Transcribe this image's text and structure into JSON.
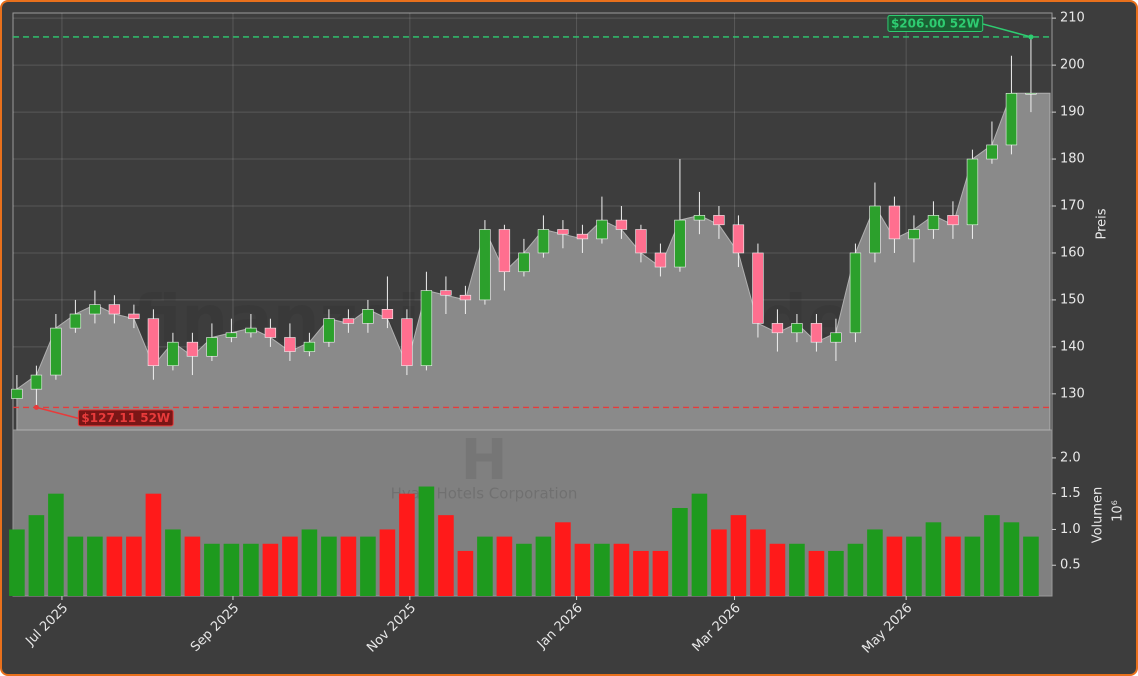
{
  "chart_data": {
    "type": "candlestick",
    "categories": [
      null,
      null,
      null,
      null,
      null,
      null,
      null,
      null,
      null,
      null,
      null,
      null,
      null,
      null,
      null,
      null,
      null,
      null,
      null,
      null,
      null,
      null,
      null,
      null,
      null,
      null,
      null,
      null,
      null,
      null,
      null,
      null,
      null,
      null,
      null,
      null,
      null,
      null,
      null,
      null,
      null,
      null,
      null,
      null,
      null,
      null,
      null,
      null,
      null,
      null,
      null,
      null,
      null
    ],
    "open": [
      129,
      131,
      134,
      144,
      147,
      149,
      147,
      146,
      136,
      141,
      138,
      142,
      143,
      144,
      142,
      139,
      141,
      146,
      145,
      148,
      146,
      136,
      152,
      151,
      150,
      165,
      156,
      160,
      165,
      164,
      163,
      167,
      165,
      160,
      157,
      167,
      168,
      166,
      160,
      145,
      143,
      145,
      141,
      143,
      160,
      170,
      163,
      165,
      168,
      166,
      180,
      183,
      194
    ],
    "high": [
      134,
      136,
      147,
      150,
      152,
      151,
      149,
      148,
      143,
      143,
      145,
      146,
      147,
      146,
      145,
      143,
      148,
      148,
      150,
      155,
      148,
      156,
      155,
      153,
      167,
      166,
      163,
      168,
      167,
      166,
      172,
      170,
      166,
      162,
      180,
      173,
      170,
      168,
      162,
      148,
      147,
      147,
      146,
      162,
      175,
      172,
      168,
      171,
      171,
      182,
      188,
      202,
      206
    ],
    "low": [
      129,
      127.11,
      133,
      143,
      145,
      145,
      144,
      133,
      135,
      134,
      137,
      141,
      142,
      140,
      137,
      138,
      140,
      143,
      143,
      144,
      134,
      135,
      147,
      147,
      149,
      152,
      155,
      159,
      161,
      160,
      162,
      163,
      158,
      155,
      156,
      164,
      163,
      157,
      142,
      139,
      141,
      139,
      137,
      141,
      158,
      160,
      158,
      163,
      163,
      163,
      179,
      181,
      190
    ],
    "close": [
      131,
      134,
      144,
      147,
      149,
      147,
      146,
      136,
      141,
      138,
      142,
      143,
      144,
      142,
      139,
      141,
      146,
      145,
      148,
      146,
      136,
      152,
      151,
      150,
      165,
      156,
      160,
      165,
      164,
      163,
      167,
      165,
      160,
      157,
      167,
      168,
      166,
      160,
      145,
      143,
      145,
      141,
      143,
      160,
      170,
      163,
      165,
      168,
      166,
      180,
      183,
      194,
      194
    ],
    "ylim": [
      122.3,
      211.1
    ],
    "yticks": [
      130,
      140,
      150,
      160,
      170,
      180,
      190,
      200,
      210
    ],
    "y_label": "Preis",
    "xlim": [
      -0.2,
      53.08
    ],
    "xticks": [
      {
        "value": 2.31,
        "label": "Jul 2025"
      },
      {
        "value": 11.08,
        "label": "Sep 2025"
      },
      {
        "value": 20.15,
        "label": "Nov 2025"
      },
      {
        "value": 28.7,
        "label": "Jan 2026"
      },
      {
        "value": 36.8,
        "label": "Mar 2026"
      },
      {
        "value": 45.6,
        "label": "May 2026"
      }
    ],
    "grid": true,
    "up_color": "#2ca02c",
    "down_color": "#ff6f8f",
    "area_color": "#8a8a8a",
    "annotations": [
      {
        "value": 206.0,
        "label": "$206.00 52W",
        "color": "#2ecc71"
      },
      {
        "value": 127.11,
        "label": "$127.11 52W",
        "color": "#e83b3b"
      }
    ],
    "volume": {
      "values": [
        1.0,
        1.2,
        1.5,
        0.9,
        0.9,
        0.9,
        0.9,
        1.5,
        1.0,
        0.9,
        0.8,
        0.8,
        0.8,
        0.8,
        0.9,
        1.0,
        0.9,
        0.9,
        0.9,
        1.0,
        1.5,
        1.6,
        1.2,
        0.7,
        0.9,
        0.9,
        0.8,
        0.9,
        1.1,
        0.8,
        0.8,
        0.8,
        0.7,
        0.7,
        1.3,
        1.5,
        1.0,
        1.2,
        1.0,
        0.8,
        0.8,
        0.7,
        0.7,
        0.8,
        1.0,
        0.9,
        0.9,
        1.1,
        0.9,
        0.9,
        1.2,
        1.1,
        0.9
      ],
      "ylim": [
        0.07,
        2.39
      ],
      "yticks": [
        0.5,
        {
          "value": 1.0,
          "label": "1.0"
        },
        1.5,
        {
          "value": 2.0,
          "label": "2.0"
        }
      ],
      "y_label": "Volumen",
      "offset_label": "10⁶",
      "up_color": "#1e9a1e",
      "down_color": "#ff1a1a",
      "background": "#808080"
    },
    "watermark": {
      "text": "finanzsignale.trade",
      "symbol": "H",
      "company": "Hyatt Hotels Corporation"
    }
  }
}
